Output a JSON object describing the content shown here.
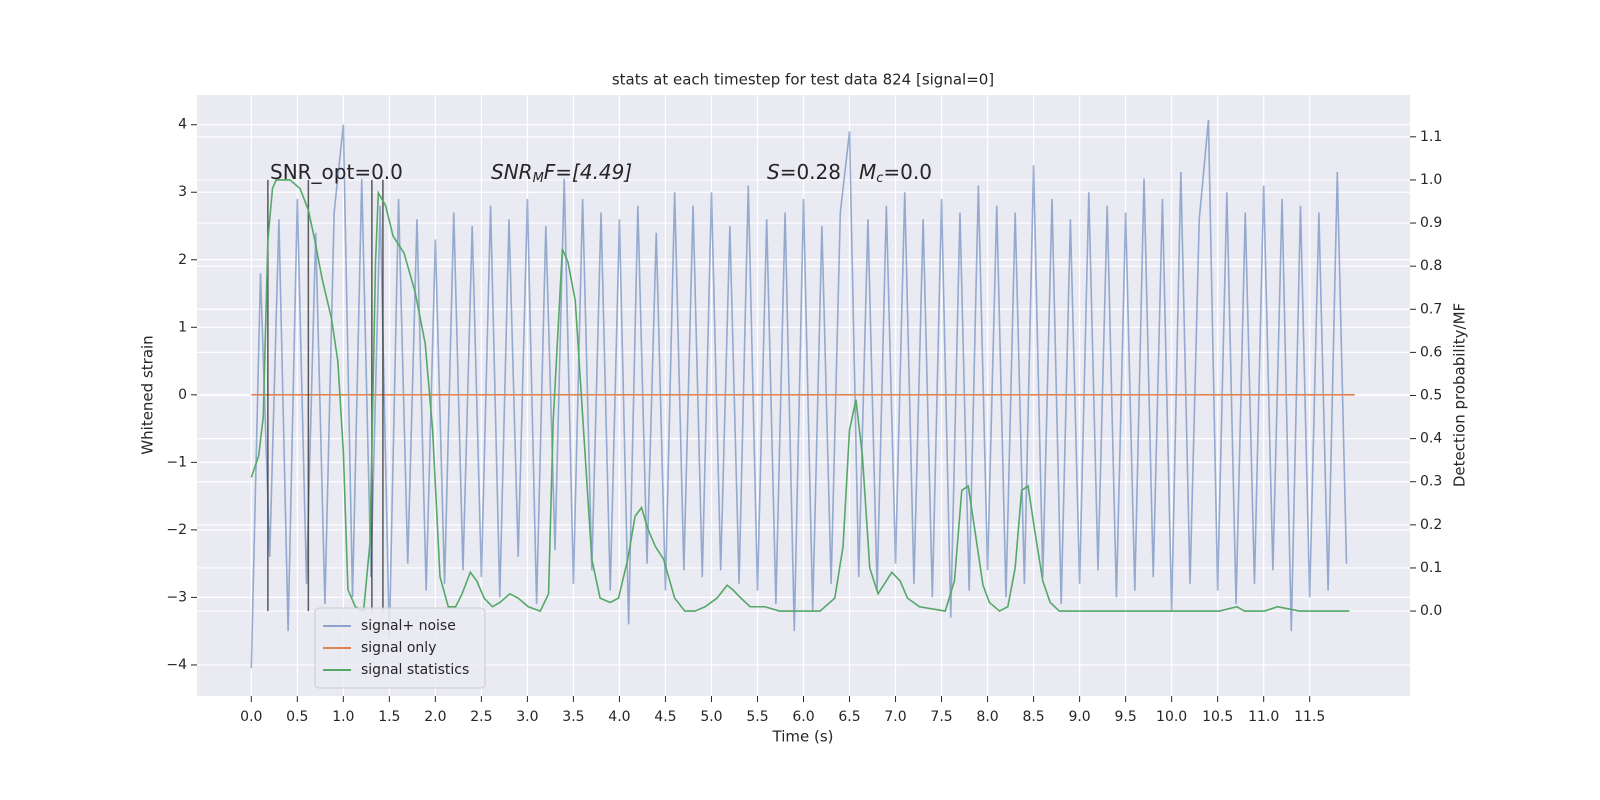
{
  "chart_data": {
    "type": "line",
    "title": "stats at each timestep for test data 824 [signal=0]",
    "x_label": "Time (s)",
    "y_label": "Whitened strain",
    "y2_label": "Detection probability/MF",
    "xlim": [
      -0.59,
      12.59
    ],
    "ylim": [
      -4.46,
      4.44
    ],
    "y2lim": [
      -0.197,
      1.197
    ],
    "xticks": [
      {
        "value": 0,
        "label": "0.0"
      },
      0.5,
      {
        "value": 1,
        "label": "1.0"
      },
      1.5,
      {
        "value": 2,
        "label": "2.0"
      },
      2.5,
      {
        "value": 3,
        "label": "3.0"
      },
      3.5,
      {
        "value": 4,
        "label": "4.0"
      },
      4.5,
      {
        "value": 5,
        "label": "5.0"
      },
      5.5,
      {
        "value": 6,
        "label": "6.0"
      },
      6.5,
      {
        "value": 7,
        "label": "7.0"
      },
      7.5,
      {
        "value": 8,
        "label": "8.0"
      },
      8.5,
      {
        "value": 9,
        "label": "9.0"
      },
      9.5,
      {
        "value": 10,
        "label": "10.0"
      },
      10.5,
      {
        "value": 11,
        "label": "11.0"
      },
      11.5
    ],
    "yticks": [
      {
        "value": -4,
        "label": "−4"
      },
      {
        "value": -3,
        "label": "−3"
      },
      {
        "value": -2,
        "label": "−2"
      },
      {
        "value": -1,
        "label": "−1"
      },
      0,
      1,
      2,
      3,
      4
    ],
    "y2ticks": [
      {
        "value": 0,
        "label": "0.0"
      },
      0.1,
      0.2,
      0.3,
      0.4,
      0.5,
      0.6,
      0.7,
      0.8,
      0.9,
      {
        "value": 1,
        "label": "1.0"
      },
      1.1
    ],
    "grid": true,
    "legend": "lower left",
    "annotations": [
      [
        "SNR_opt=0.0"
      ],
      [
        "SNR",
        "M",
        "F=[4.49]"
      ],
      [
        "S",
        "=0.28",
        "M",
        "c",
        "=0.0"
      ]
    ],
    "vlines": {
      "x": [
        0.18,
        0.62,
        1.31,
        1.43
      ],
      "y2": [
        0,
        1
      ],
      "color": "#333333"
    },
    "series": [
      {
        "name": "signal+ noise",
        "color": "#4c72b0",
        "x": [
          0.0,
          0.1,
          0.2,
          0.3,
          0.4,
          0.5,
          0.6,
          0.7,
          0.8,
          0.9,
          1.0,
          1.1,
          1.2,
          1.3,
          1.4,
          1.5,
          1.6,
          1.7,
          1.8,
          1.9,
          2.0,
          2.1,
          2.2,
          2.3,
          2.4,
          2.5,
          2.6,
          2.7,
          2.8,
          2.9,
          3.0,
          3.1,
          3.2,
          3.3,
          3.4,
          3.5,
          3.6,
          3.7,
          3.8,
          3.9,
          4.0,
          4.1,
          4.2,
          4.3,
          4.4,
          4.5,
          4.6,
          4.7,
          4.8,
          4.9,
          5.0,
          5.1,
          5.2,
          5.3,
          5.4,
          5.5,
          5.6,
          5.7,
          5.8,
          5.9,
          6.0,
          6.1,
          6.2,
          6.3,
          6.4,
          6.5,
          6.6,
          6.7,
          6.8,
          6.9,
          7.0,
          7.1,
          7.2,
          7.3,
          7.4,
          7.5,
          7.6,
          7.7,
          7.8,
          7.9,
          8.0,
          8.1,
          8.2,
          8.3,
          8.4,
          8.5,
          8.6,
          8.7,
          8.8,
          8.9,
          9.0,
          9.1,
          9.2,
          9.3,
          9.4,
          9.5,
          9.6,
          9.7,
          9.8,
          9.9,
          10.0,
          10.1,
          10.2,
          10.3,
          10.4,
          10.5,
          10.6,
          10.7,
          10.8,
          10.9,
          11.0,
          11.1,
          11.2,
          11.3,
          11.4,
          11.5,
          11.6,
          11.7,
          11.8,
          11.9
        ],
        "values": [
          -4.05,
          1.8,
          -2.4,
          2.6,
          -3.5,
          2.9,
          -2.8,
          2.4,
          -3.1,
          2.7,
          4.0,
          -3.0,
          3.2,
          -2.7,
          2.8,
          -3.6,
          2.9,
          -2.5,
          2.6,
          -2.9,
          2.3,
          -2.8,
          2.7,
          -2.6,
          2.5,
          -2.7,
          2.8,
          -3.0,
          2.6,
          -2.4,
          2.9,
          -3.1,
          2.5,
          -2.3,
          3.2,
          -2.8,
          2.9,
          -2.6,
          2.7,
          -2.9,
          2.6,
          -3.4,
          2.8,
          -2.5,
          2.4,
          -2.9,
          3.0,
          -2.6,
          2.8,
          -2.7,
          3.0,
          -2.6,
          2.5,
          -2.8,
          3.1,
          -2.9,
          2.6,
          -3.1,
          2.7,
          -3.5,
          2.9,
          -3.2,
          2.5,
          -2.8,
          2.7,
          3.9,
          -2.7,
          2.6,
          -2.9,
          2.8,
          -2.5,
          3.0,
          -2.8,
          2.6,
          -3.0,
          2.9,
          -3.3,
          2.7,
          -2.9,
          3.1,
          -2.6,
          2.8,
          -3.0,
          2.7,
          -2.8,
          3.4,
          -2.7,
          2.9,
          -3.1,
          2.6,
          -2.8,
          3.0,
          -2.6,
          2.8,
          -3.0,
          2.7,
          -2.9,
          3.2,
          -2.7,
          2.9,
          -3.2,
          3.3,
          -2.8,
          2.6,
          4.07,
          -2.9,
          3.0,
          -3.1,
          2.7,
          -2.8,
          3.1,
          -2.6,
          2.9,
          -3.5,
          2.8,
          -3.0,
          2.7,
          -2.9,
          3.3,
          -2.5
        ]
      },
      {
        "name": "signal only",
        "color": "#dd8452",
        "x": [
          0.0,
          11.99
        ],
        "values": [
          0,
          0
        ]
      },
      {
        "name": "signal statistics",
        "color": "#55a868",
        "axis": "y2",
        "x": [
          0.0,
          0.08,
          0.13,
          0.18,
          0.23,
          0.27,
          0.42,
          0.53,
          0.62,
          0.69,
          0.77,
          0.87,
          0.94,
          1.0,
          1.05,
          1.13,
          1.22,
          1.29,
          1.35,
          1.38,
          1.46,
          1.54,
          1.66,
          1.78,
          1.89,
          1.97,
          2.05,
          2.14,
          2.22,
          2.29,
          2.38,
          2.45,
          2.53,
          2.62,
          2.7,
          2.81,
          2.9,
          3.01,
          3.14,
          3.23,
          3.28,
          3.38,
          3.44,
          3.52,
          3.61,
          3.7,
          3.79,
          3.9,
          3.99,
          4.09,
          4.17,
          4.24,
          4.31,
          4.39,
          4.48,
          4.6,
          4.71,
          4.82,
          4.93,
          5.06,
          5.17,
          5.23,
          5.32,
          5.42,
          5.58,
          5.74,
          5.96,
          6.18,
          6.34,
          6.43,
          6.5,
          6.57,
          6.64,
          6.72,
          6.81,
          6.87,
          6.96,
          7.05,
          7.13,
          7.26,
          7.54,
          7.64,
          7.72,
          7.79,
          7.86,
          7.95,
          8.02,
          8.13,
          8.22,
          8.3,
          8.37,
          8.44,
          8.51,
          8.6,
          8.68,
          8.78,
          9.22,
          9.98,
          10.52,
          10.71,
          10.79,
          11.01,
          11.15,
          11.39,
          11.61,
          11.93
        ],
        "values": [
          0.31,
          0.36,
          0.45,
          0.86,
          0.98,
          1.0,
          1.0,
          0.98,
          0.93,
          0.86,
          0.77,
          0.68,
          0.58,
          0.37,
          0.05,
          0.01,
          0.0,
          0.16,
          0.81,
          0.97,
          0.94,
          0.87,
          0.83,
          0.74,
          0.62,
          0.42,
          0.08,
          0.01,
          0.01,
          0.04,
          0.09,
          0.07,
          0.03,
          0.01,
          0.02,
          0.04,
          0.03,
          0.01,
          0.0,
          0.04,
          0.44,
          0.84,
          0.81,
          0.72,
          0.42,
          0.12,
          0.03,
          0.02,
          0.03,
          0.12,
          0.22,
          0.24,
          0.19,
          0.15,
          0.12,
          0.03,
          0.0,
          0.0,
          0.01,
          0.03,
          0.06,
          0.05,
          0.03,
          0.01,
          0.01,
          0.0,
          0.0,
          0.0,
          0.03,
          0.15,
          0.42,
          0.49,
          0.36,
          0.1,
          0.04,
          0.06,
          0.09,
          0.07,
          0.03,
          0.01,
          0.0,
          0.07,
          0.28,
          0.29,
          0.19,
          0.06,
          0.02,
          0.0,
          0.01,
          0.1,
          0.28,
          0.29,
          0.19,
          0.07,
          0.02,
          0.0,
          0.0,
          0.0,
          0.0,
          0.01,
          0.0,
          0.0,
          0.01,
          0.0,
          0.0,
          0.0
        ]
      }
    ]
  }
}
